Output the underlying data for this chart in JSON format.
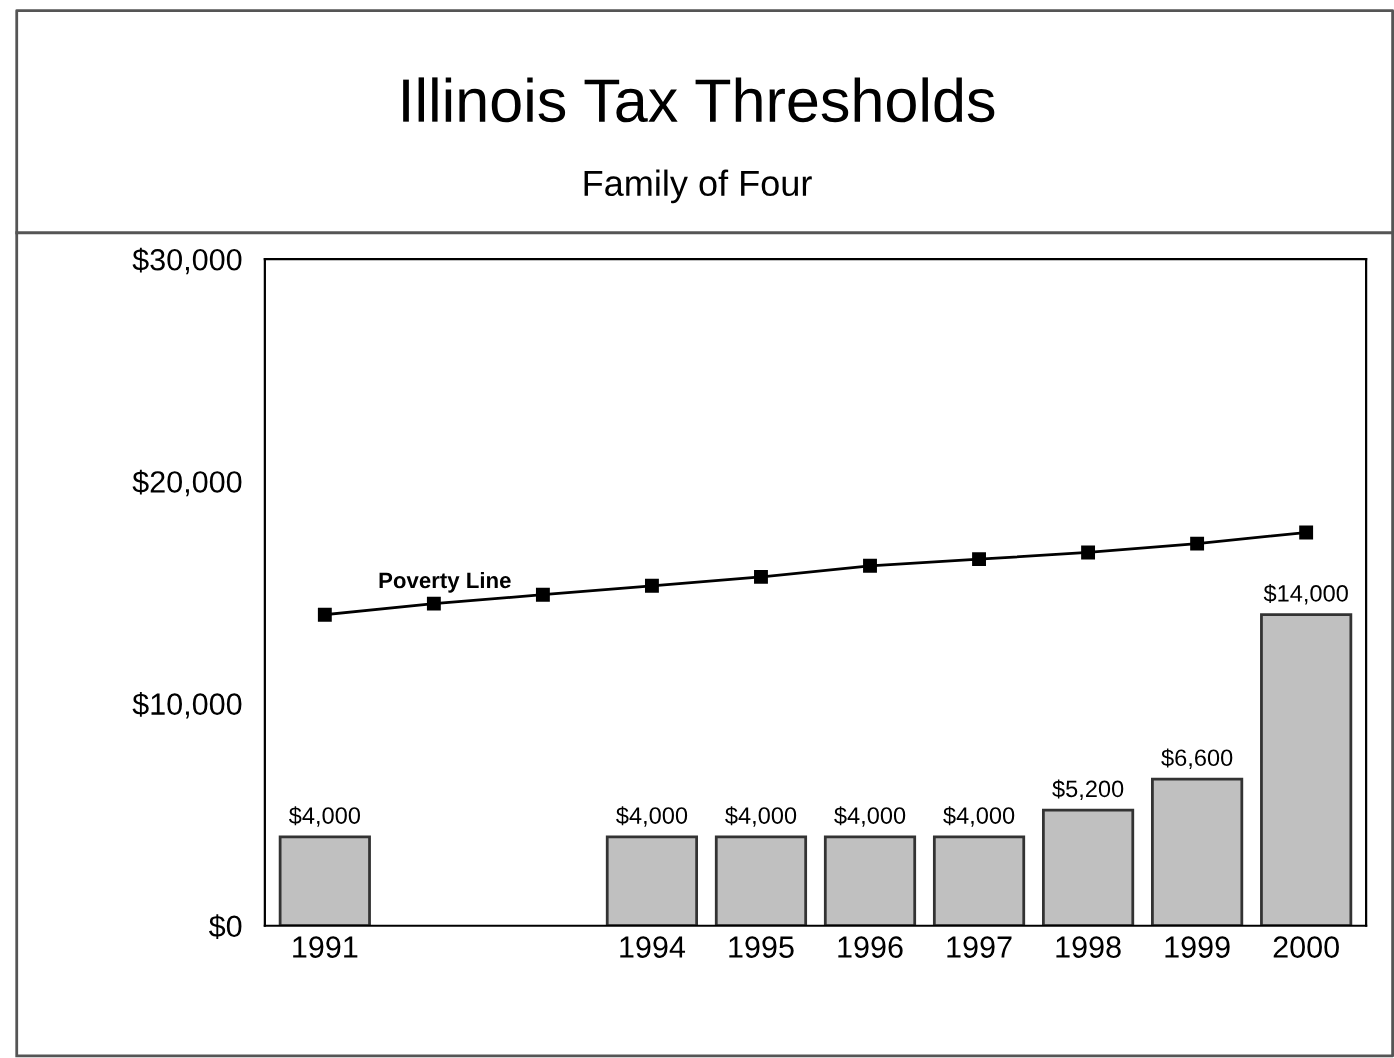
{
  "chart_data": {
    "type": "bar",
    "title": "Illinois Tax Thresholds",
    "subtitle": "Family of Four",
    "categories": [
      "1991",
      null,
      null,
      "1994",
      "1995",
      "1996",
      "1997",
      "1998",
      "1999",
      "2000"
    ],
    "series": [
      {
        "color": "#c0c0c0",
        "values": [
          4000,
          null,
          null,
          4000,
          4000,
          4000,
          4000,
          5200,
          6600,
          14000
        ],
        "value_labels": [
          "$4,000",
          null,
          null,
          "$4,000",
          "$4,000",
          "$4,000",
          "$4,000",
          "$5,200",
          "$6,600",
          "$14,000"
        ]
      },
      {
        "type": "line",
        "name": "Poverty Line",
        "color": "#000000",
        "marker": "square",
        "line_style": "solid",
        "values": [
          14000,
          14500,
          14900,
          15300,
          15700,
          16200,
          16500,
          16800,
          17200,
          17700
        ]
      }
    ],
    "ylim": [
      0,
      30000
    ],
    "yticks": [
      {
        "value": 0,
        "label": "$0"
      },
      {
        "value": 10000,
        "label": "$10,000"
      },
      {
        "value": 20000,
        "label": "$20,000"
      },
      {
        "value": 30000,
        "label": "$30,000"
      }
    ],
    "grid": false,
    "legend": false
  }
}
